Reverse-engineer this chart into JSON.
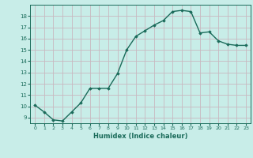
{
  "x": [
    0,
    1,
    2,
    3,
    4,
    5,
    6,
    7,
    8,
    9,
    10,
    11,
    12,
    13,
    14,
    15,
    16,
    17,
    18,
    19,
    20,
    21,
    22,
    23
  ],
  "y": [
    10.1,
    9.5,
    8.8,
    8.7,
    9.5,
    10.3,
    11.6,
    11.6,
    11.6,
    12.9,
    15.0,
    16.2,
    16.7,
    17.2,
    17.6,
    18.4,
    18.5,
    18.4,
    16.5,
    16.6,
    15.8,
    15.5,
    15.4,
    15.4
  ],
  "xlabel": "Humidex (Indice chaleur)",
  "xlim": [
    -0.5,
    23.5
  ],
  "ylim": [
    8.5,
    19.0
  ],
  "yticks": [
    9,
    10,
    11,
    12,
    13,
    14,
    15,
    16,
    17,
    18
  ],
  "xticks": [
    0,
    1,
    2,
    3,
    4,
    5,
    6,
    7,
    8,
    9,
    10,
    11,
    12,
    13,
    14,
    15,
    16,
    17,
    18,
    19,
    20,
    21,
    22,
    23
  ],
  "line_color": "#1a6b5a",
  "marker": "D",
  "marker_size": 1.8,
  "bg_color": "#c8ede8",
  "grid_color": "#c8b8c0",
  "line_width": 1.0
}
